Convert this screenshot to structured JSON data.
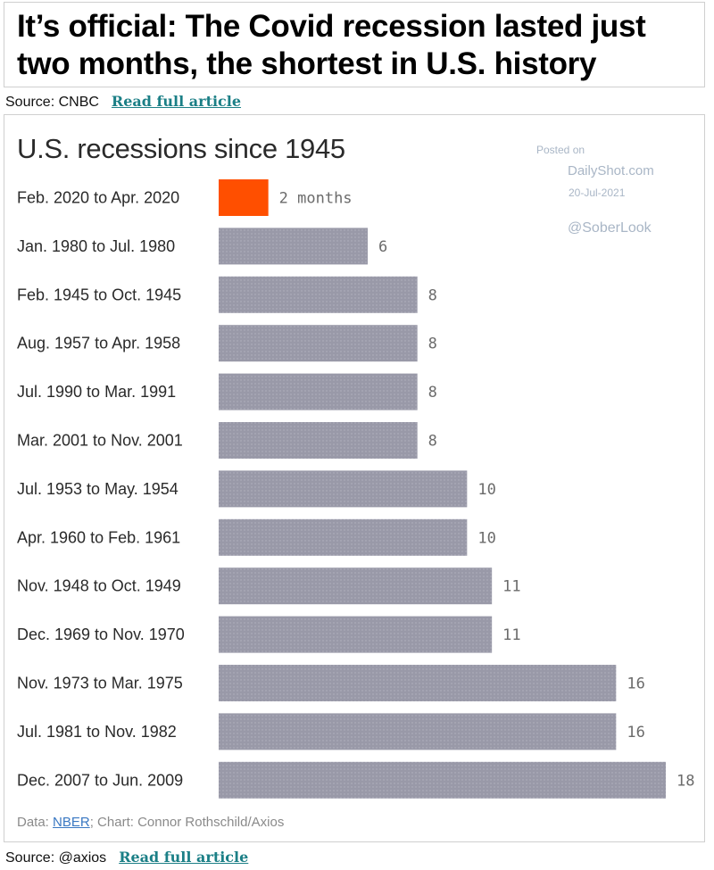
{
  "headline": {
    "line1": "It’s official: The Covid recession lasted just",
    "line2": "two months, the shortest in U.S. history"
  },
  "source_top": {
    "label": "Source: CNBC",
    "link": "Read full article"
  },
  "watermark": {
    "posted": "Posted on",
    "site": "DailyShot.com",
    "date": "20-Jul-2021",
    "handle": "@SoberLook"
  },
  "footer": {
    "data_prefix": "Data: ",
    "data_link": "NBER",
    "suffix": "; Chart: Connor Rothschild/Axios"
  },
  "source_bottom": {
    "label": "Source: @axios",
    "link": "Read full article"
  },
  "colors": {
    "highlight": "#ff4f00",
    "bar": "#9999a8",
    "bar_dot": "#b3b3c0",
    "value_text": "#6b6b6b"
  },
  "chart_data": {
    "type": "bar",
    "orientation": "horizontal",
    "title": "U.S. recessions since 1945",
    "categories": [
      "Feb. 2020 to Apr. 2020",
      "Jan. 1980 to Jul. 1980",
      "Feb. 1945 to Oct. 1945",
      "Aug. 1957 to Apr. 1958",
      "Jul. 1990 to Mar. 1991",
      "Mar. 2001 to Nov. 2001",
      "Jul. 1953 to May. 1954",
      "Apr. 1960 to Feb. 1961",
      "Nov. 1948 to Oct. 1949",
      "Dec. 1969 to Nov. 1970",
      "Nov. 1973 to Mar. 1975",
      "Jul. 1981 to Nov. 1982",
      "Dec. 2007 to Jun. 2009"
    ],
    "values": [
      2,
      6,
      8,
      8,
      8,
      8,
      10,
      10,
      11,
      11,
      16,
      16,
      18
    ],
    "value_labels": [
      "2 months",
      "6",
      "8",
      "8",
      "8",
      "8",
      "10",
      "10",
      "11",
      "11",
      "16",
      "16",
      "18"
    ],
    "highlight_index": 0,
    "xlim": [
      0,
      18
    ],
    "grid": false,
    "legend": "none"
  }
}
